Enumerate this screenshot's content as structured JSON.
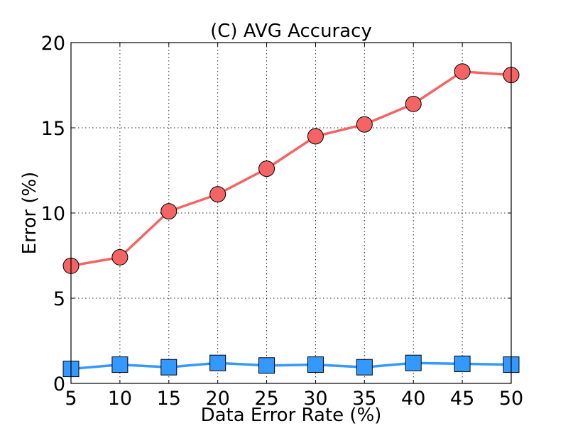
{
  "chart_data": {
    "type": "line",
    "title": "(C) AVG Accuracy",
    "xlabel": "Data Error Rate (%)",
    "ylabel": "Error (%)",
    "x": [
      5,
      10,
      15,
      20,
      25,
      30,
      35,
      40,
      45,
      50
    ],
    "xlim": [
      5,
      50
    ],
    "ylim": [
      0,
      20
    ],
    "xticks": [
      5,
      10,
      15,
      20,
      25,
      30,
      35,
      40,
      45,
      50
    ],
    "yticks": [
      0,
      5,
      10,
      15,
      20
    ],
    "grid": true,
    "series": [
      {
        "values": [
          6.9,
          7.4,
          10.1,
          11.1,
          12.6,
          14.5,
          15.2,
          16.4,
          18.3,
          18.1
        ],
        "color": "#f46464",
        "marker": "circle"
      },
      {
        "values": [
          0.85,
          1.1,
          0.95,
          1.2,
          1.05,
          1.1,
          0.95,
          1.2,
          1.15,
          1.1
        ],
        "color": "#3399ff",
        "marker": "square"
      }
    ]
  }
}
